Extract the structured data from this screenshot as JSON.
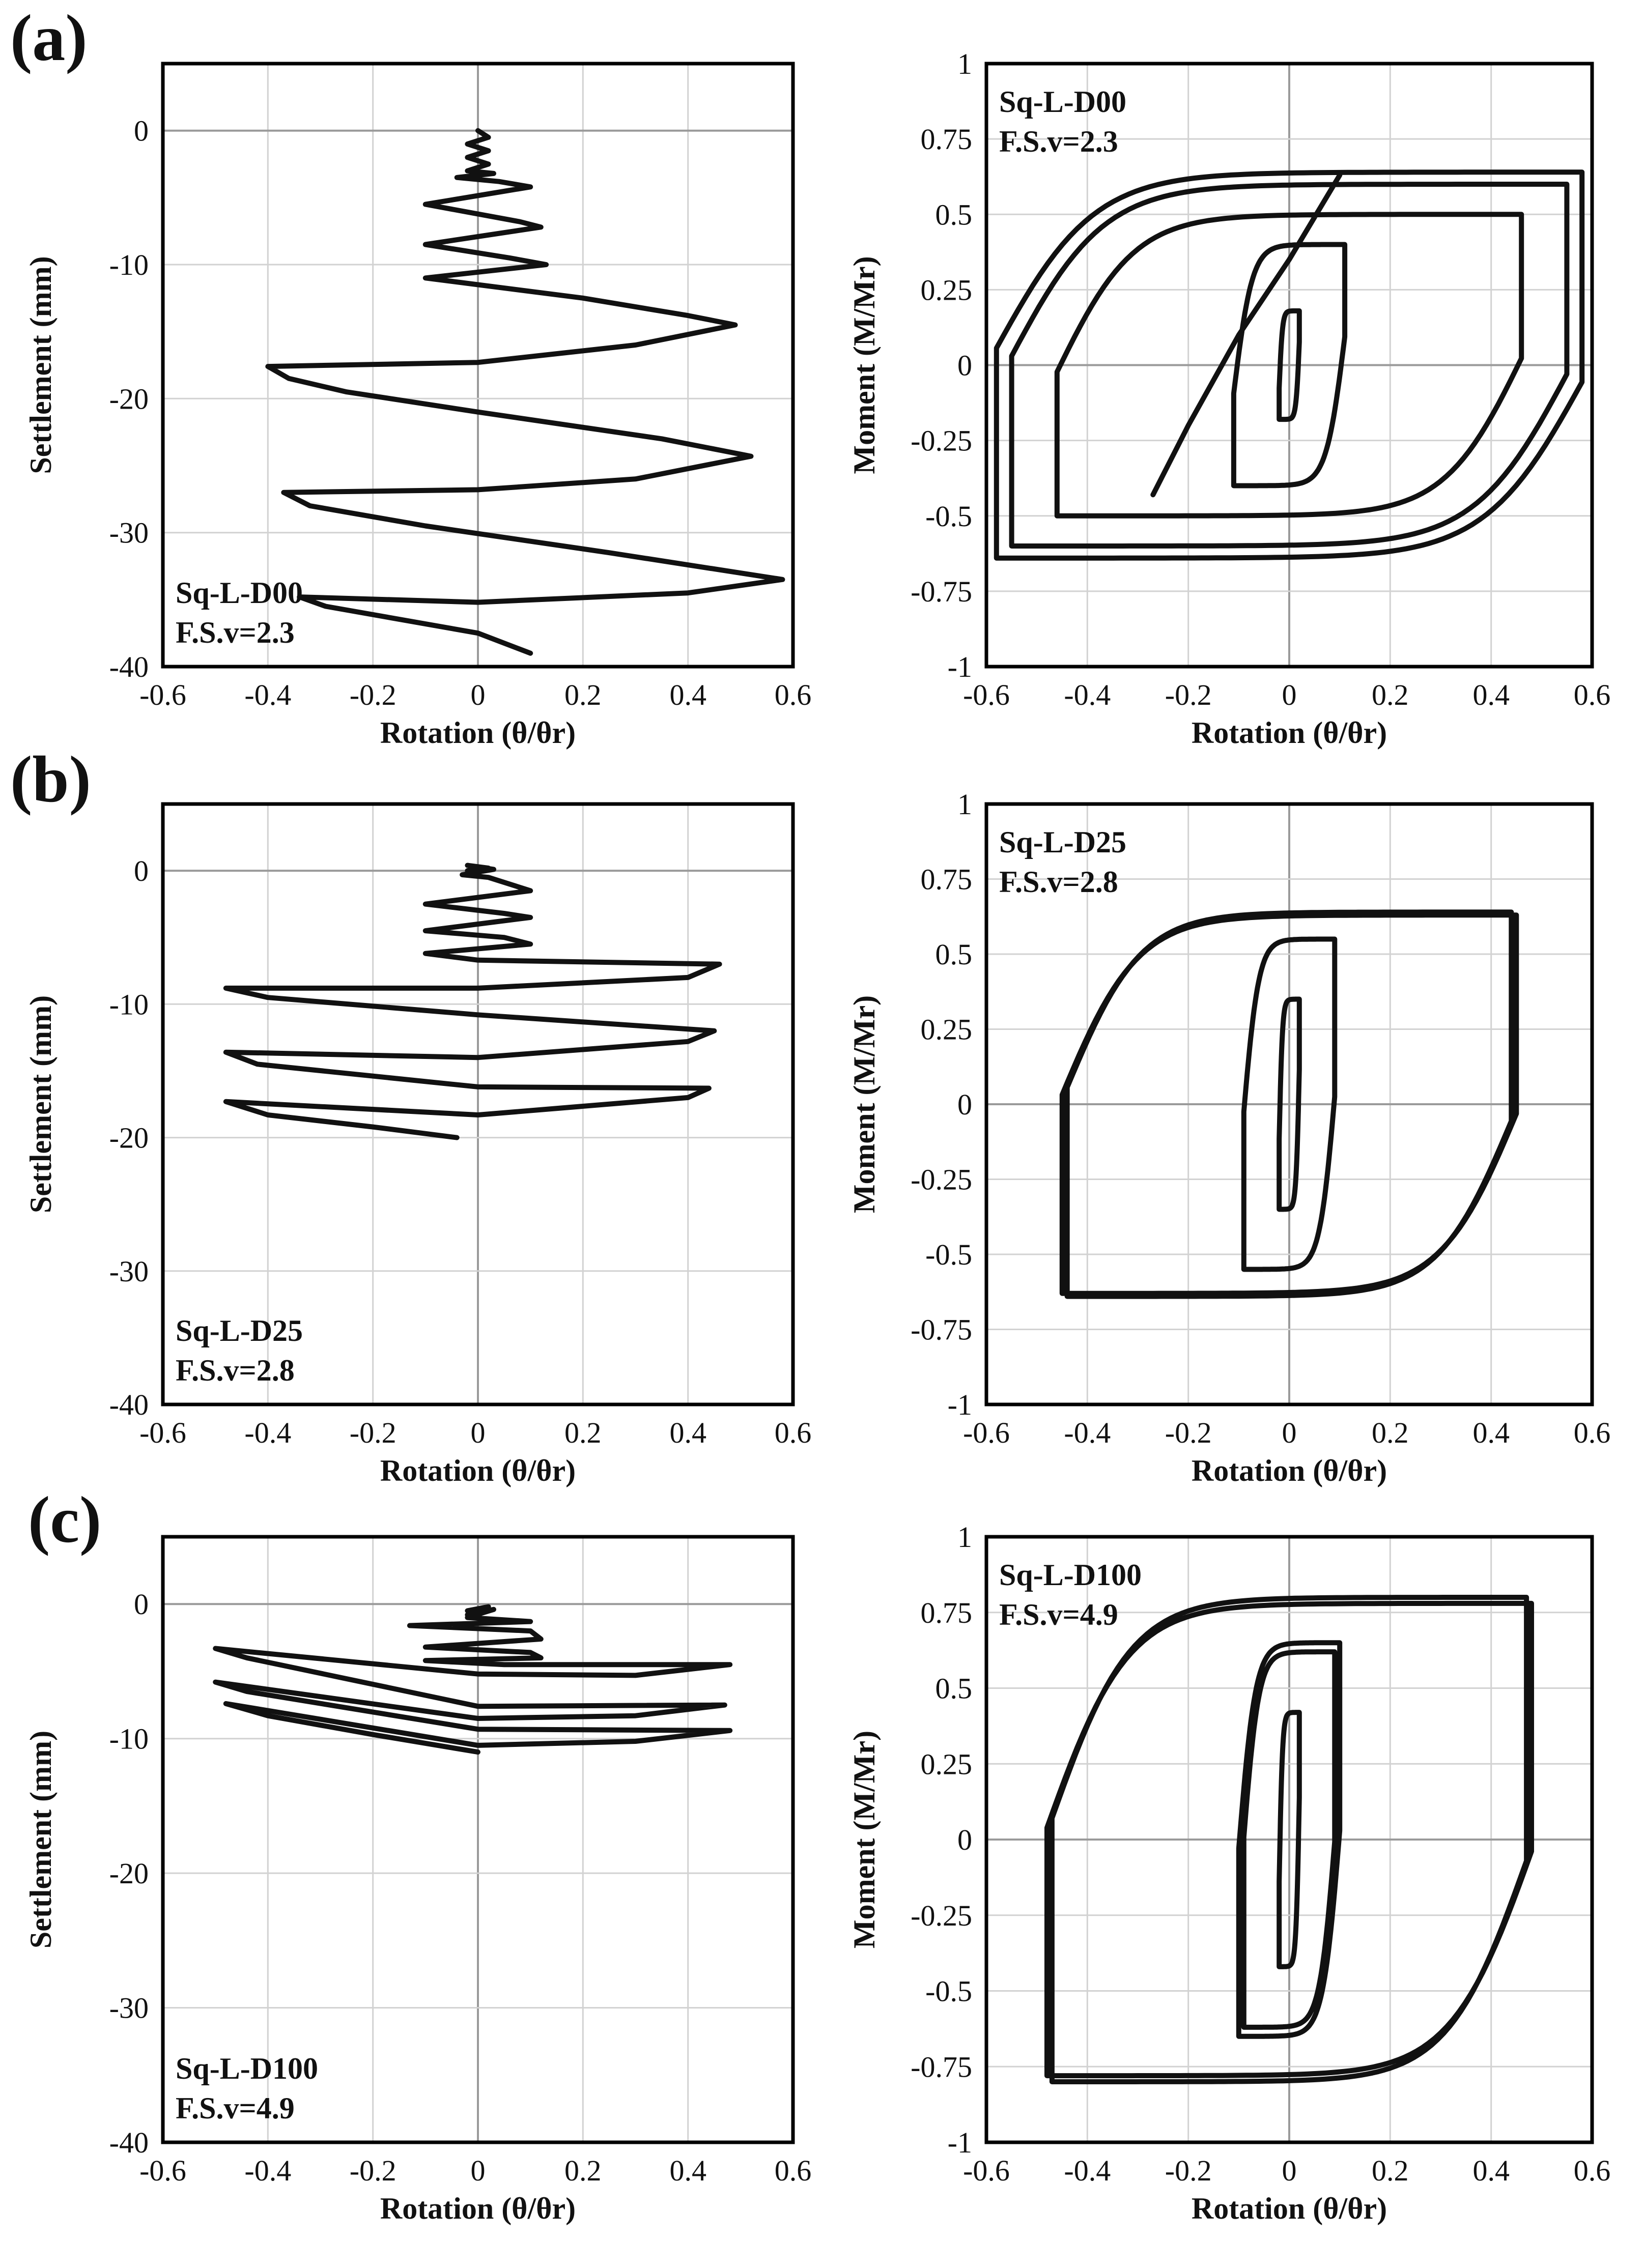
{
  "figure": {
    "panel_labels": [
      "(a)",
      "(b)",
      "(c)"
    ]
  },
  "chart_data": [
    {
      "id": "a-settlement",
      "row": 0,
      "col": 0,
      "type": "line",
      "panel_label": "(a)",
      "annotation": [
        "Sq-L-D00",
        "F.S.v=2.3"
      ],
      "xlabel": "Rotation (θ/θr)",
      "ylabel": "Settlement (mm)",
      "xlim": [
        -0.6,
        0.6
      ],
      "ylim": [
        -40,
        5
      ],
      "xticks": [
        -0.6,
        -0.4,
        -0.2,
        0,
        0.2,
        0.4,
        0.6
      ],
      "xtick_labels": [
        "-0.6",
        "-0.4",
        "-0.2",
        "0",
        "0.2",
        "0.4",
        "0.6"
      ],
      "yticks": [
        0,
        -10,
        -20,
        -30,
        -40
      ],
      "ytick_labels": [
        "0",
        "-10",
        "-20",
        "-30",
        "-40"
      ],
      "series": [
        {
          "name": "Sq-L-D00 settlement",
          "points": [
            [
              0,
              0
            ],
            [
              0.02,
              -0.5
            ],
            [
              -0.02,
              -1
            ],
            [
              0.02,
              -1.5
            ],
            [
              -0.02,
              -2
            ],
            [
              0.02,
              -2.5
            ],
            [
              -0.02,
              -3
            ],
            [
              0.03,
              -3.2
            ],
            [
              -0.04,
              -3.5
            ],
            [
              0.04,
              -3.8
            ],
            [
              0.1,
              -4.2
            ],
            [
              -0.1,
              -5.5
            ],
            [
              0.08,
              -6.8
            ],
            [
              0.12,
              -7.2
            ],
            [
              -0.1,
              -8.5
            ],
            [
              0.06,
              -9.5
            ],
            [
              0.13,
              -10
            ],
            [
              -0.1,
              -11
            ],
            [
              0.2,
              -12.5
            ],
            [
              0.4,
              -13.8
            ],
            [
              0.49,
              -14.5
            ],
            [
              0.3,
              -16
            ],
            [
              0,
              -17.3
            ],
            [
              -0.4,
              -17.6
            ],
            [
              -0.36,
              -18.5
            ],
            [
              -0.25,
              -19.5
            ],
            [
              0,
              -21
            ],
            [
              0.35,
              -23
            ],
            [
              0.52,
              -24.3
            ],
            [
              0.3,
              -26
            ],
            [
              0,
              -26.8
            ],
            [
              -0.37,
              -27
            ],
            [
              -0.32,
              -28
            ],
            [
              -0.1,
              -29.5
            ],
            [
              0.25,
              -31.5
            ],
            [
              0.58,
              -33.5
            ],
            [
              0.4,
              -34.5
            ],
            [
              0,
              -35.2
            ],
            [
              -0.34,
              -34.8
            ],
            [
              -0.29,
              -35.5
            ],
            [
              0,
              -37.5
            ],
            [
              0.1,
              -39
            ]
          ]
        }
      ]
    },
    {
      "id": "a-moment",
      "row": 0,
      "col": 1,
      "type": "line",
      "annotation": [
        "Sq-L-D00",
        "F.S.v=2.3"
      ],
      "xlabel": "Rotation (θ/θr)",
      "ylabel": "Moment (M/Mr)",
      "xlim": [
        -0.6,
        0.6
      ],
      "ylim": [
        -1,
        1
      ],
      "xticks": [
        -0.6,
        -0.4,
        -0.2,
        0,
        0.2,
        0.4,
        0.6
      ],
      "xtick_labels": [
        "-0.6",
        "-0.4",
        "-0.2",
        "0",
        "0.2",
        "0.4",
        "0.6"
      ],
      "yticks": [
        1,
        0.75,
        0.5,
        0.25,
        0,
        -0.25,
        -0.5,
        -0.75,
        -1
      ],
      "ytick_labels": [
        "1",
        "0.75",
        "0.5",
        "0.25",
        "0",
        "-0.25",
        "-0.5",
        "-0.75",
        "-1"
      ],
      "series": [
        {
          "name": "Sq-L-D00 moment",
          "loops": [
            [
              0.02,
              0.18,
              0.25
            ],
            [
              0.11,
              0.4,
              0.35
            ],
            [
              0.46,
              0.5,
              0.45
            ],
            [
              0.55,
              0.6,
              0.5
            ],
            [
              0.58,
              0.64,
              0.52
            ]
          ],
          "tail": [
            [
              -0.27,
              -0.43
            ],
            [
              -0.2,
              -0.2
            ],
            [
              -0.1,
              0.1
            ],
            [
              0,
              0.35
            ],
            [
              0.1,
              0.63
            ]
          ]
        }
      ]
    },
    {
      "id": "b-settlement",
      "row": 1,
      "col": 0,
      "type": "line",
      "panel_label": "(b)",
      "annotation": [
        "Sq-L-D25",
        "F.S.v=2.8"
      ],
      "xlabel": "Rotation (θ/θr)",
      "ylabel": "Settlement (mm)",
      "xlim": [
        -0.6,
        0.6
      ],
      "ylim": [
        -40,
        5
      ],
      "xticks": [
        -0.6,
        -0.4,
        -0.2,
        0,
        0.2,
        0.4,
        0.6
      ],
      "xtick_labels": [
        "-0.6",
        "-0.4",
        "-0.2",
        "0",
        "0.2",
        "0.4",
        "0.6"
      ],
      "yticks": [
        0,
        -10,
        -20,
        -30,
        -40
      ],
      "ytick_labels": [
        "0",
        "-10",
        "-20",
        "-30",
        "-40"
      ],
      "series": [
        {
          "name": "Sq-L-D25 settlement",
          "points": [
            [
              -0.02,
              0
            ],
            [
              0.02,
              0.2
            ],
            [
              -0.02,
              0.4
            ],
            [
              0.03,
              0.1
            ],
            [
              -0.03,
              -0.3
            ],
            [
              0.02,
              -0.5
            ],
            [
              0.1,
              -1.5
            ],
            [
              -0.1,
              -2.5
            ],
            [
              0.05,
              -3.2
            ],
            [
              0.1,
              -3.5
            ],
            [
              -0.1,
              -4.5
            ],
            [
              0.05,
              -5
            ],
            [
              0.1,
              -5.5
            ],
            [
              -0.1,
              -6.2
            ],
            [
              0,
              -6.7
            ],
            [
              0.3,
              -6.9
            ],
            [
              0.46,
              -7
            ],
            [
              0.4,
              -8
            ],
            [
              0,
              -8.8
            ],
            [
              -0.48,
              -8.8
            ],
            [
              -0.4,
              -9.5
            ],
            [
              0,
              -10.8
            ],
            [
              0.45,
              -12
            ],
            [
              0.4,
              -12.8
            ],
            [
              0,
              -14
            ],
            [
              -0.48,
              -13.6
            ],
            [
              -0.42,
              -14.5
            ],
            [
              0,
              -16.2
            ],
            [
              0.44,
              -16.3
            ],
            [
              0.4,
              -17
            ],
            [
              0,
              -18.3
            ],
            [
              -0.48,
              -17.3
            ],
            [
              -0.4,
              -18.3
            ],
            [
              -0.2,
              -19.2
            ],
            [
              -0.04,
              -20
            ]
          ]
        }
      ]
    },
    {
      "id": "b-moment",
      "row": 1,
      "col": 1,
      "type": "line",
      "annotation": [
        "Sq-L-D25",
        "F.S.v=2.8"
      ],
      "xlabel": "Rotation (θ/θr)",
      "ylabel": "Moment (M/Mr)",
      "xlim": [
        -0.6,
        0.6
      ],
      "ylim": [
        -1,
        1
      ],
      "xticks": [
        -0.6,
        -0.4,
        -0.2,
        0,
        0.2,
        0.4,
        0.6
      ],
      "xtick_labels": [
        "-0.6",
        "-0.4",
        "-0.2",
        "0",
        "0.2",
        "0.4",
        "0.6"
      ],
      "yticks": [
        1,
        0.75,
        0.5,
        0.25,
        0,
        -0.25,
        -0.5,
        -0.75,
        -1
      ],
      "ytick_labels": [
        "1",
        "0.75",
        "0.5",
        "0.25",
        "0",
        "-0.25",
        "-0.5",
        "-0.75",
        "-1"
      ],
      "series": [
        {
          "name": "Sq-L-D25 moment",
          "loops": [
            [
              0.02,
              0.35,
              0.3
            ],
            [
              0.09,
              0.55,
              0.45
            ],
            [
              0.45,
              0.63,
              0.5
            ],
            [
              0.44,
              0.64,
              0.52
            ]
          ],
          "tail": []
        }
      ]
    },
    {
      "id": "c-settlement",
      "row": 2,
      "col": 0,
      "type": "line",
      "panel_label": "(c)",
      "annotation": [
        "Sq-L-D100",
        "F.S.v=4.9"
      ],
      "xlabel": "Rotation (θ/θr)",
      "ylabel": "Settlement (mm)",
      "xlim": [
        -0.6,
        0.6
      ],
      "ylim": [
        -40,
        5
      ],
      "xticks": [
        -0.6,
        -0.4,
        -0.2,
        0,
        0.2,
        0.4,
        0.6
      ],
      "xtick_labels": [
        "-0.6",
        "-0.4",
        "-0.2",
        "0",
        "0.2",
        "0.4",
        "0.6"
      ],
      "yticks": [
        0,
        -10,
        -20,
        -30,
        -40
      ],
      "ytick_labels": [
        "0",
        "-10",
        "-20",
        "-30",
        "-40"
      ],
      "series": [
        {
          "name": "Sq-L-D100 settlement",
          "points": [
            [
              -0.02,
              -0.5
            ],
            [
              0.02,
              -0.2
            ],
            [
              -0.02,
              -0.8
            ],
            [
              0.03,
              -0.4
            ],
            [
              -0.02,
              -1
            ],
            [
              0.1,
              -1.3
            ],
            [
              -0.13,
              -1.6
            ],
            [
              0.1,
              -2
            ],
            [
              0.12,
              -2.6
            ],
            [
              -0.1,
              -3.2
            ],
            [
              0.1,
              -3.6
            ],
            [
              0.12,
              -4
            ],
            [
              -0.1,
              -4.2
            ],
            [
              0.05,
              -4.5
            ],
            [
              0.48,
              -4.5
            ],
            [
              0.3,
              -5.3
            ],
            [
              0,
              -5.2
            ],
            [
              -0.5,
              -3.3
            ],
            [
              -0.44,
              -4
            ],
            [
              0,
              -7.6
            ],
            [
              0.47,
              -7.5
            ],
            [
              0.3,
              -8.3
            ],
            [
              0,
              -8.5
            ],
            [
              -0.5,
              -5.8
            ],
            [
              -0.44,
              -6.5
            ],
            [
              0,
              -9.3
            ],
            [
              0.48,
              -9.4
            ],
            [
              0.3,
              -10.2
            ],
            [
              0,
              -10.5
            ],
            [
              -0.48,
              -7.4
            ],
            [
              -0.4,
              -8.3
            ],
            [
              -0.2,
              -9.7
            ],
            [
              0,
              -11
            ]
          ]
        }
      ]
    },
    {
      "id": "c-moment",
      "row": 2,
      "col": 1,
      "type": "line",
      "annotation": [
        "Sq-L-D100",
        "F.S.v=4.9"
      ],
      "xlabel": "Rotation (θ/θr)",
      "ylabel": "Moment (M/Mr)",
      "xlim": [
        -0.6,
        0.6
      ],
      "ylim": [
        -1,
        1
      ],
      "xticks": [
        -0.6,
        -0.4,
        -0.2,
        0,
        0.2,
        0.4,
        0.6
      ],
      "xtick_labels": [
        "-0.6",
        "-0.4",
        "-0.2",
        "0",
        "0.2",
        "0.4",
        "0.6"
      ],
      "yticks": [
        1,
        0.75,
        0.5,
        0.25,
        0,
        -0.25,
        -0.5,
        -0.75,
        -1
      ],
      "ytick_labels": [
        "1",
        "0.75",
        "0.5",
        "0.25",
        "0",
        "-0.25",
        "-0.5",
        "-0.75",
        "-1"
      ],
      "series": [
        {
          "name": "Sq-L-D100 moment",
          "loops": [
            [
              0.02,
              0.42,
              0.3
            ],
            [
              0.1,
              0.65,
              0.45
            ],
            [
              0.09,
              0.62,
              0.48
            ],
            [
              0.48,
              0.78,
              0.5
            ],
            [
              0.47,
              0.8,
              0.52
            ]
          ],
          "tail": []
        }
      ]
    }
  ]
}
